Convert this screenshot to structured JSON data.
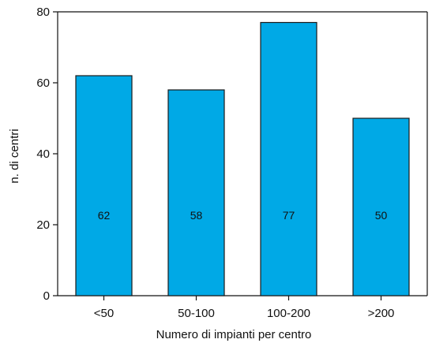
{
  "chart_data": {
    "type": "bar",
    "categories": [
      "<50",
      "50-100",
      "100-200",
      ">200"
    ],
    "values": [
      62,
      58,
      77,
      50
    ],
    "data_labels": [
      "62",
      "58",
      "77",
      "50"
    ],
    "xlabel": "Numero di impianti per centro",
    "ylabel": "n. di centri",
    "ylim": [
      0,
      80
    ],
    "yticks": [
      0,
      20,
      40,
      60,
      80
    ],
    "grid": false,
    "bar_color": "#00a9e6",
    "bar_edge_color": "#1a1a1a"
  }
}
